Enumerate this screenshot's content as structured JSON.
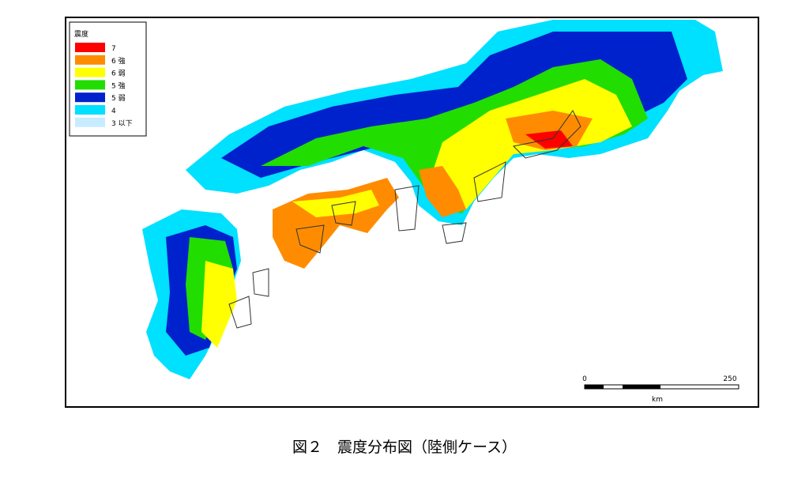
{
  "legend": {
    "title": "震度",
    "items": [
      {
        "label": "7",
        "color": "#ff0000"
      },
      {
        "label": "6 強",
        "color": "#ff8c00"
      },
      {
        "label": "6 弱",
        "color": "#ffff00"
      },
      {
        "label": "5 強",
        "color": "#22dd00"
      },
      {
        "label": "5 弱",
        "color": "#0022cc"
      },
      {
        "label": "4",
        "color": "#00e0ff"
      },
      {
        "label": "3 以下",
        "color": "#c8ecff"
      }
    ]
  },
  "scale_bar": {
    "start": "0",
    "end": "250",
    "unit": "km"
  },
  "caption": "図２　震度分布図（陸側ケース）"
}
